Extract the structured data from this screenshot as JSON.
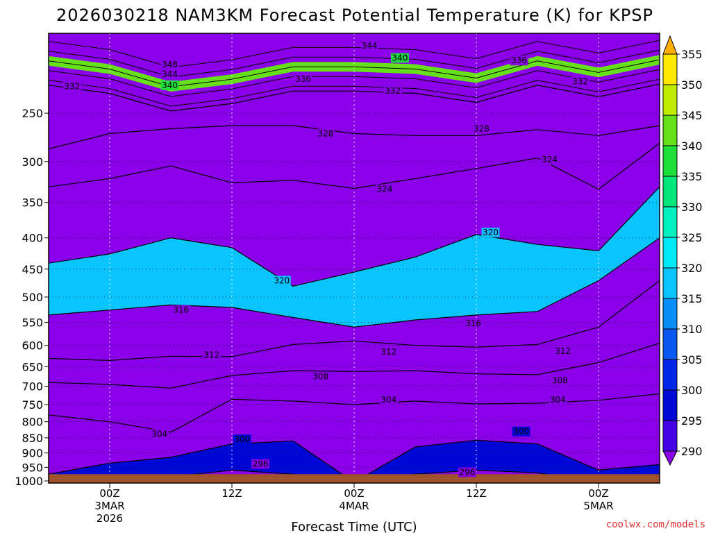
{
  "chart_data": {
    "type": "heatmap",
    "title": "2026030218 NAM3KM Forecast Potential Temperature (K) for KPSP",
    "xlabel": "Forecast Time (UTC)",
    "ylabel": "",
    "units": "K",
    "x_ticks": [
      {
        "hour": 6,
        "line1": "00Z",
        "line2": "3MAR",
        "line3": "2026"
      },
      {
        "hour": 18,
        "line1": "12Z",
        "line2": "",
        "line3": ""
      },
      {
        "hour": 30,
        "line1": "00Z",
        "line2": "4MAR",
        "line3": ""
      },
      {
        "hour": 42,
        "line1": "12Z",
        "line2": "",
        "line3": ""
      },
      {
        "hour": 54,
        "line1": "00Z",
        "line2": "5MAR",
        "line3": ""
      }
    ],
    "xlim": [
      0,
      60
    ],
    "y_ticks": [
      250,
      300,
      350,
      400,
      450,
      500,
      550,
      600,
      650,
      700,
      750,
      800,
      850,
      900,
      950,
      1000
    ],
    "ylim": [
      1008,
      185
    ],
    "y_scale": "log-pressure",
    "colorbar": {
      "levels": [
        290,
        295,
        300,
        305,
        310,
        315,
        320,
        325,
        330,
        335,
        340,
        345,
        350,
        355
      ],
      "colors": [
        "#8a00e8",
        "#4400e6",
        "#0008d8",
        "#0026ea",
        "#0a58f0",
        "#0890f8",
        "#0ac4ff",
        "#00eaf4",
        "#00f0c0",
        "#00e67a",
        "#1fde3a",
        "#66e01a",
        "#c0ec00",
        "#ffe800",
        "#ffae00"
      ]
    },
    "x_hours": [
      0,
      6,
      12,
      18,
      24,
      30,
      36,
      42,
      48,
      54,
      60
    ],
    "isentrope_pressures": [
      {
        "theta": 296,
        "p": [
          1005,
          1005,
          985,
          960,
          975,
          1005,
          975,
          960,
          970,
          1005,
          1005
        ]
      },
      {
        "theta": 300,
        "p": [
          975,
          935,
          915,
          870,
          860,
          1005,
          880,
          858,
          870,
          960,
          940
        ]
      },
      {
        "theta": 304,
        "p": [
          780,
          800,
          832,
          735,
          740,
          750,
          740,
          748,
          746,
          738,
          720
        ]
      },
      {
        "theta": 308,
        "p": [
          690,
          695,
          705,
          672,
          660,
          662,
          660,
          668,
          670,
          640,
          595
        ]
      },
      {
        "theta": 312,
        "p": [
          630,
          635,
          625,
          626,
          598,
          590,
          600,
          604,
          598,
          560,
          470
        ]
      },
      {
        "theta": 316,
        "p": [
          535,
          525,
          515,
          520,
          540,
          560,
          545,
          535,
          528,
          470,
          400
        ]
      },
      {
        "theta": 320,
        "p": [
          440,
          425,
          400,
          415,
          480,
          455,
          430,
          395,
          410,
          420,
          330
        ]
      },
      {
        "theta": 324,
        "p": [
          330,
          320,
          305,
          325,
          322,
          332,
          320,
          308,
          296,
          333,
          280
        ]
      },
      {
        "theta": 328,
        "p": [
          286,
          270,
          265,
          262,
          262,
          270,
          272,
          272,
          266,
          272,
          262
        ]
      },
      {
        "theta": 332,
        "p": [
          225,
          232,
          248,
          241,
          230,
          230,
          232,
          240,
          225,
          235,
          224
        ]
      }
    ],
    "contour_labels": [
      {
        "theta": 348,
        "hour": 11.9,
        "p": 208
      },
      {
        "theta": 344,
        "hour": 11.9,
        "p": 216
      },
      {
        "theta": 340,
        "hour": 11.9,
        "p": 225
      },
      {
        "theta": 332,
        "hour": 2.3,
        "p": 226
      },
      {
        "theta": 344,
        "hour": 31.5,
        "p": 194
      },
      {
        "theta": 340,
        "hour": 34.5,
        "p": 203
      },
      {
        "theta": 336,
        "hour": 25.0,
        "p": 220
      },
      {
        "theta": 336,
        "hour": 46.2,
        "p": 205
      },
      {
        "theta": 332,
        "hour": 33.8,
        "p": 230
      },
      {
        "theta": 332,
        "hour": 52.2,
        "p": 222
      },
      {
        "theta": 328,
        "hour": 27.2,
        "p": 270
      },
      {
        "theta": 328,
        "hour": 42.5,
        "p": 265
      },
      {
        "theta": 324,
        "hour": 33.0,
        "p": 333
      },
      {
        "theta": 324,
        "hour": 49.2,
        "p": 298
      },
      {
        "theta": 320,
        "hour": 43.4,
        "p": 392
      },
      {
        "theta": 320,
        "hour": 22.9,
        "p": 470
      },
      {
        "theta": 316,
        "hour": 13.0,
        "p": 525
      },
      {
        "theta": 316,
        "hour": 41.7,
        "p": 552
      },
      {
        "theta": 312,
        "hour": 16.0,
        "p": 622
      },
      {
        "theta": 312,
        "hour": 33.4,
        "p": 615
      },
      {
        "theta": 312,
        "hour": 50.5,
        "p": 613
      },
      {
        "theta": 308,
        "hour": 26.7,
        "p": 675
      },
      {
        "theta": 308,
        "hour": 50.2,
        "p": 685
      },
      {
        "theta": 304,
        "hour": 33.4,
        "p": 736
      },
      {
        "theta": 304,
        "hour": 50.0,
        "p": 736
      },
      {
        "theta": 304,
        "hour": 10.9,
        "p": 838
      },
      {
        "theta": 300,
        "hour": 19.0,
        "p": 855
      },
      {
        "theta": 300,
        "hour": 46.4,
        "p": 830
      },
      {
        "theta": 296,
        "hour": 20.8,
        "p": 938
      },
      {
        "theta": 296,
        "hour": 41.1,
        "p": 968
      }
    ],
    "surface": {
      "p": 975,
      "color": "#a0522d"
    },
    "grid": true
  },
  "credit": "coolwx.com/models"
}
